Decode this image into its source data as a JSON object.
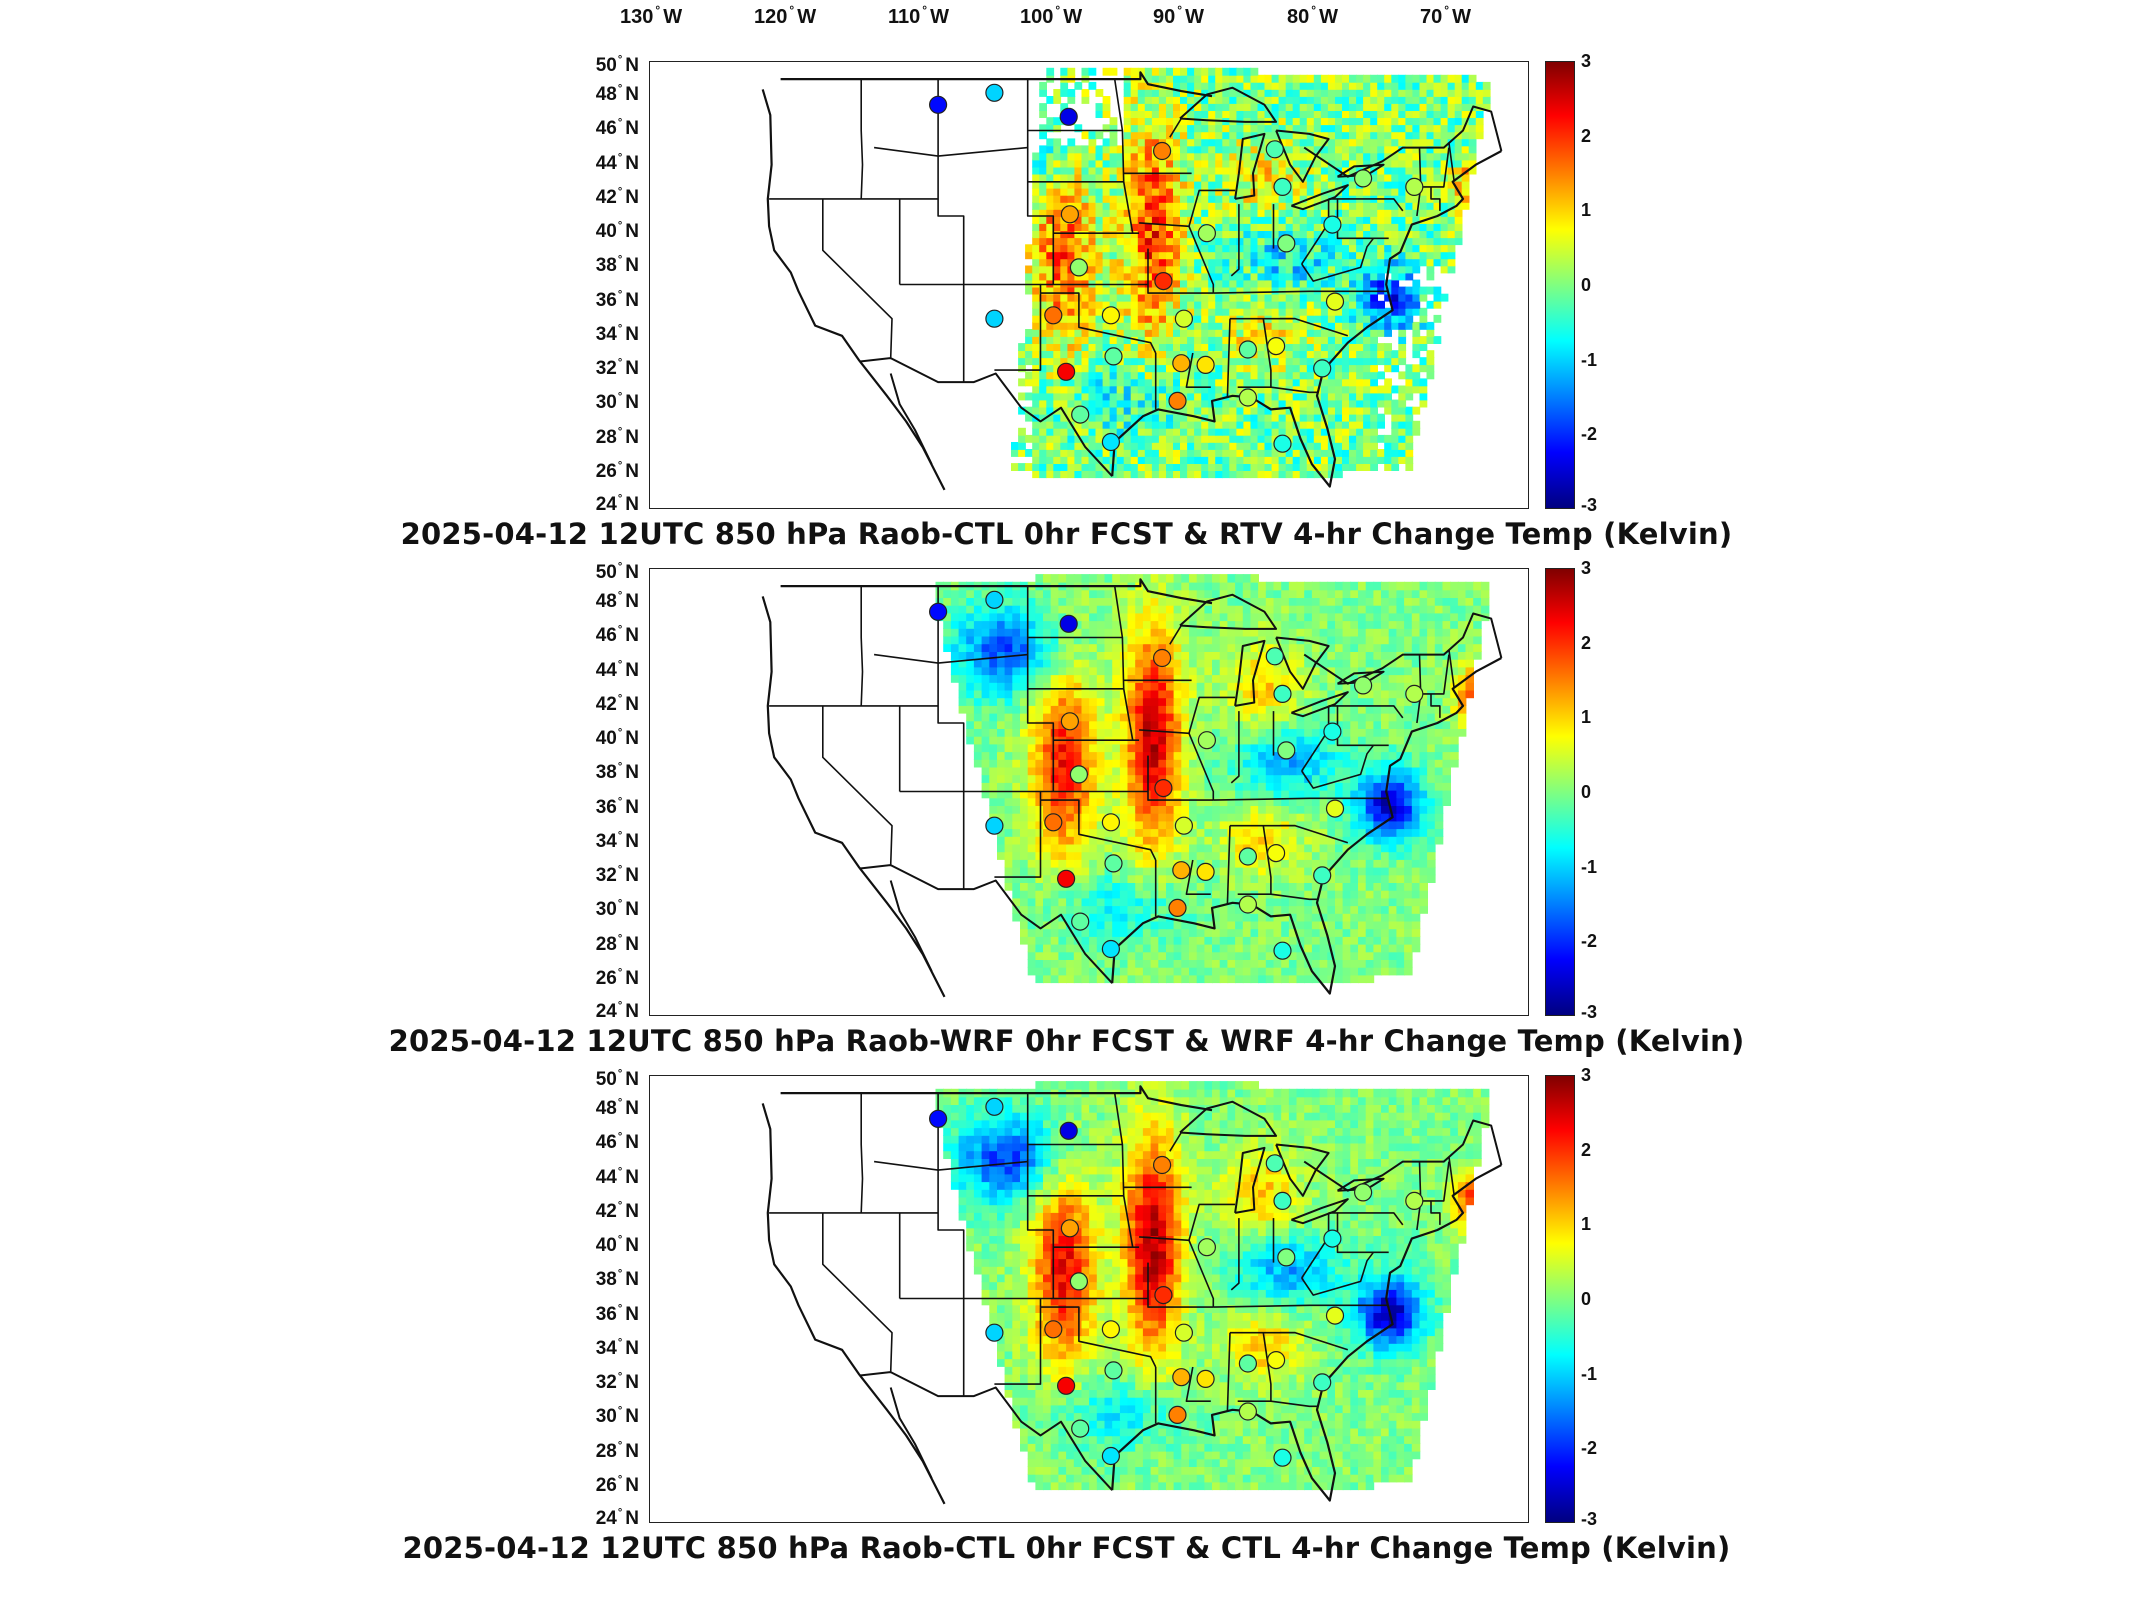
{
  "lon_labels": [
    {
      "value": "130",
      "hemi": "W"
    },
    {
      "value": "120",
      "hemi": "W"
    },
    {
      "value": "110",
      "hemi": "W"
    },
    {
      "value": "100",
      "hemi": "W"
    },
    {
      "value": "90",
      "hemi": "W"
    },
    {
      "value": "80",
      "hemi": "W"
    },
    {
      "value": "70",
      "hemi": "W"
    }
  ],
  "lat_labels_panel1": [
    "50",
    "48",
    "46",
    "44",
    "42",
    "40",
    "38",
    "36",
    "34",
    "32",
    "30",
    "28",
    "26",
    "24"
  ],
  "lat_labels_panel2": [
    "50",
    "48",
    "46",
    "44",
    "42",
    "40",
    "38",
    "36",
    "34",
    "32",
    "30",
    "28",
    "26",
    "24"
  ],
  "lat_labels_panel3": [
    "50",
    "48",
    "46",
    "44",
    "42",
    "40",
    "38",
    "36",
    "34",
    "32",
    "30",
    "28",
    "26",
    "24"
  ],
  "lat_hemi": "N",
  "colorbar": {
    "ticks": [
      "3",
      "2",
      "1",
      "0",
      "-1",
      "-2",
      "-3"
    ],
    "range": [
      -3,
      3
    ],
    "colormap": "jet"
  },
  "panels": [
    {
      "title": "2025-04-12 12UTC 850 hPa Raob-CTL 0hr FCST & RTV 4-hr Change Temp (Kelvin)",
      "field": "RTV"
    },
    {
      "title": "2025-04-12 12UTC 850 hPa Raob-WRF 0hr FCST & WRF 4-hr Change Temp (Kelvin)",
      "field": "WRF"
    },
    {
      "title": "2025-04-12 12UTC 850 hPa Raob-CTL 0hr FCST & CTL 4-hr Change Temp (Kelvin)",
      "field": "CTL"
    }
  ],
  "raob_points_approx": [
    {
      "lon": -111.0,
      "lat": 47.5,
      "value": -2.2
    },
    {
      "lon": -106.6,
      "lat": 48.2,
      "value": -1.0
    },
    {
      "lon": -100.8,
      "lat": 46.8,
      "value": -2.4
    },
    {
      "lon": -93.5,
      "lat": 44.8,
      "value": 1.5
    },
    {
      "lon": -100.7,
      "lat": 41.1,
      "value": 1.3
    },
    {
      "lon": -100.0,
      "lat": 38.0,
      "value": 0.1
    },
    {
      "lon": -102.0,
      "lat": 35.2,
      "value": 1.6
    },
    {
      "lon": -97.5,
      "lat": 35.2,
      "value": 0.8
    },
    {
      "lon": -101.0,
      "lat": 31.9,
      "value": 2.3
    },
    {
      "lon": -97.3,
      "lat": 32.8,
      "value": -0.2
    },
    {
      "lon": -93.4,
      "lat": 37.2,
      "value": 2.0
    },
    {
      "lon": -90.0,
      "lat": 40.0,
      "value": 0.2
    },
    {
      "lon": -84.7,
      "lat": 44.9,
      "value": -0.3
    },
    {
      "lon": -84.1,
      "lat": 42.7,
      "value": -0.4
    },
    {
      "lon": -77.8,
      "lat": 43.2,
      "value": 0.1
    },
    {
      "lon": -73.8,
      "lat": 42.7,
      "value": 0.3
    },
    {
      "lon": -80.2,
      "lat": 40.5,
      "value": -0.6
    },
    {
      "lon": -83.8,
      "lat": 39.4,
      "value": 0.0
    },
    {
      "lon": -91.8,
      "lat": 35.0,
      "value": 0.5
    },
    {
      "lon": -92.0,
      "lat": 32.4,
      "value": 1.2
    },
    {
      "lon": -92.3,
      "lat": 30.2,
      "value": 1.5
    },
    {
      "lon": -90.1,
      "lat": 32.3,
      "value": 0.9
    },
    {
      "lon": -86.8,
      "lat": 33.2,
      "value": -0.2
    },
    {
      "lon": -84.6,
      "lat": 33.4,
      "value": 0.7
    },
    {
      "lon": -80.0,
      "lat": 36.0,
      "value": 0.6
    },
    {
      "lon": -81.0,
      "lat": 32.1,
      "value": -0.4
    },
    {
      "lon": -86.8,
      "lat": 30.4,
      "value": 0.3
    },
    {
      "lon": -84.1,
      "lat": 27.7,
      "value": -0.6
    },
    {
      "lon": -97.5,
      "lat": 27.8,
      "value": -0.9
    },
    {
      "lon": -99.9,
      "lat": 29.4,
      "value": -0.2
    },
    {
      "lon": -106.6,
      "lat": 35.0,
      "value": -1.0
    }
  ]
}
